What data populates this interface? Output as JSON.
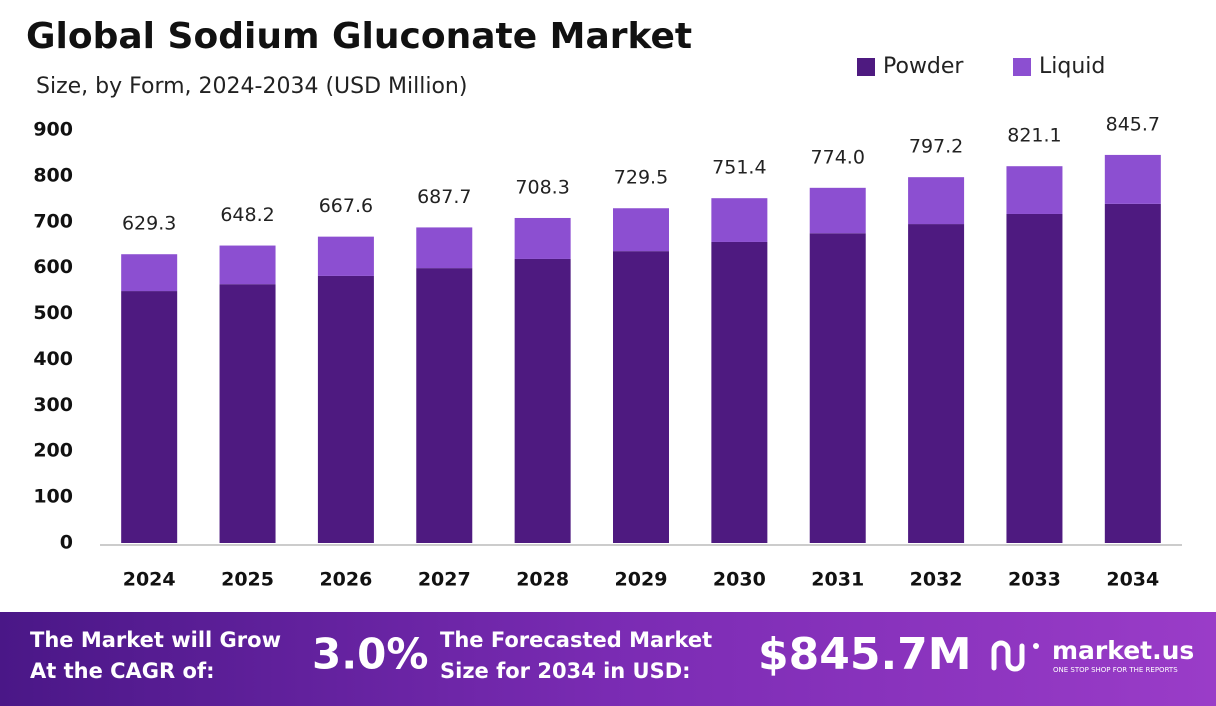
{
  "chart_data": {
    "type": "stacked_bar",
    "title": "Global Sodium Gluconate Market",
    "subtitle": "Size, by Form, 2024-2034 (USD Million)",
    "categories": [
      "2024",
      "2025",
      "2026",
      "2027",
      "2028",
      "2029",
      "2030",
      "2031",
      "2032",
      "2033",
      "2034"
    ],
    "series": [
      {
        "name": "Powder",
        "color": "#4e1a80",
        "values": [
          549,
          564,
          582,
          599,
          619,
          636,
          656,
          675,
          695,
          717,
          739
        ]
      },
      {
        "name": "Liquid",
        "color": "#8c4fd1",
        "values": [
          80.3,
          84.2,
          85.6,
          88.7,
          89.3,
          93.5,
          95.4,
          99.0,
          102.2,
          104.1,
          106.7
        ]
      }
    ],
    "totals": [
      629.3,
      648.2,
      667.6,
      687.7,
      708.3,
      729.5,
      751.4,
      774.0,
      797.2,
      821.1,
      845.7
    ],
    "total_labels": [
      "629.3",
      "648.2",
      "667.6",
      "687.7",
      "708.3",
      "729.5",
      "751.4",
      "774.0",
      "797.2",
      "821.1",
      "845.7"
    ],
    "ylim": [
      0,
      900
    ],
    "yticks": [
      0,
      100,
      200,
      300,
      400,
      500,
      600,
      700,
      800,
      900
    ],
    "grid": false,
    "legend": "top-right"
  },
  "footer": {
    "cagr_text": [
      "The Market will Grow",
      "At the CAGR of:"
    ],
    "cagr_value": "3.0%",
    "forecast_text": [
      "The Forecasted Market",
      "Size for 2034 in USD:"
    ],
    "forecast_value": "$845.7M",
    "brand": "market.us",
    "tagline": "ONE STOP SHOP FOR THE REPORTS"
  }
}
